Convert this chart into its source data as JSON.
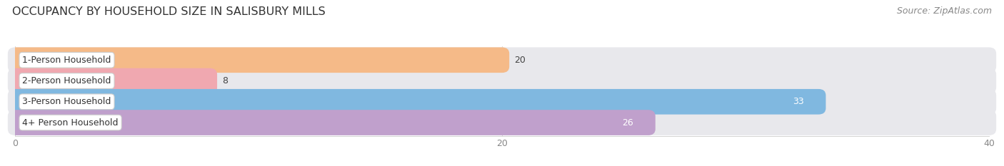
{
  "title": "OCCUPANCY BY HOUSEHOLD SIZE IN SALISBURY MILLS",
  "source": "Source: ZipAtlas.com",
  "categories": [
    "1-Person Household",
    "2-Person Household",
    "3-Person Household",
    "4+ Person Household"
  ],
  "values": [
    20,
    8,
    33,
    26
  ],
  "bar_colors": [
    "#f5ba88",
    "#f0a8b0",
    "#80b8e0",
    "#c0a0cc"
  ],
  "label_colors": [
    "#444444",
    "#444444",
    "#ffffff",
    "#ffffff"
  ],
  "value_outside_color": "#444444",
  "xlim": [
    0,
    40
  ],
  "xticks": [
    0,
    20,
    40
  ],
  "background_color": "#ffffff",
  "bar_bg_color": "#e8e8ec",
  "title_fontsize": 11.5,
  "label_fontsize": 9,
  "value_fontsize": 9,
  "source_fontsize": 9
}
